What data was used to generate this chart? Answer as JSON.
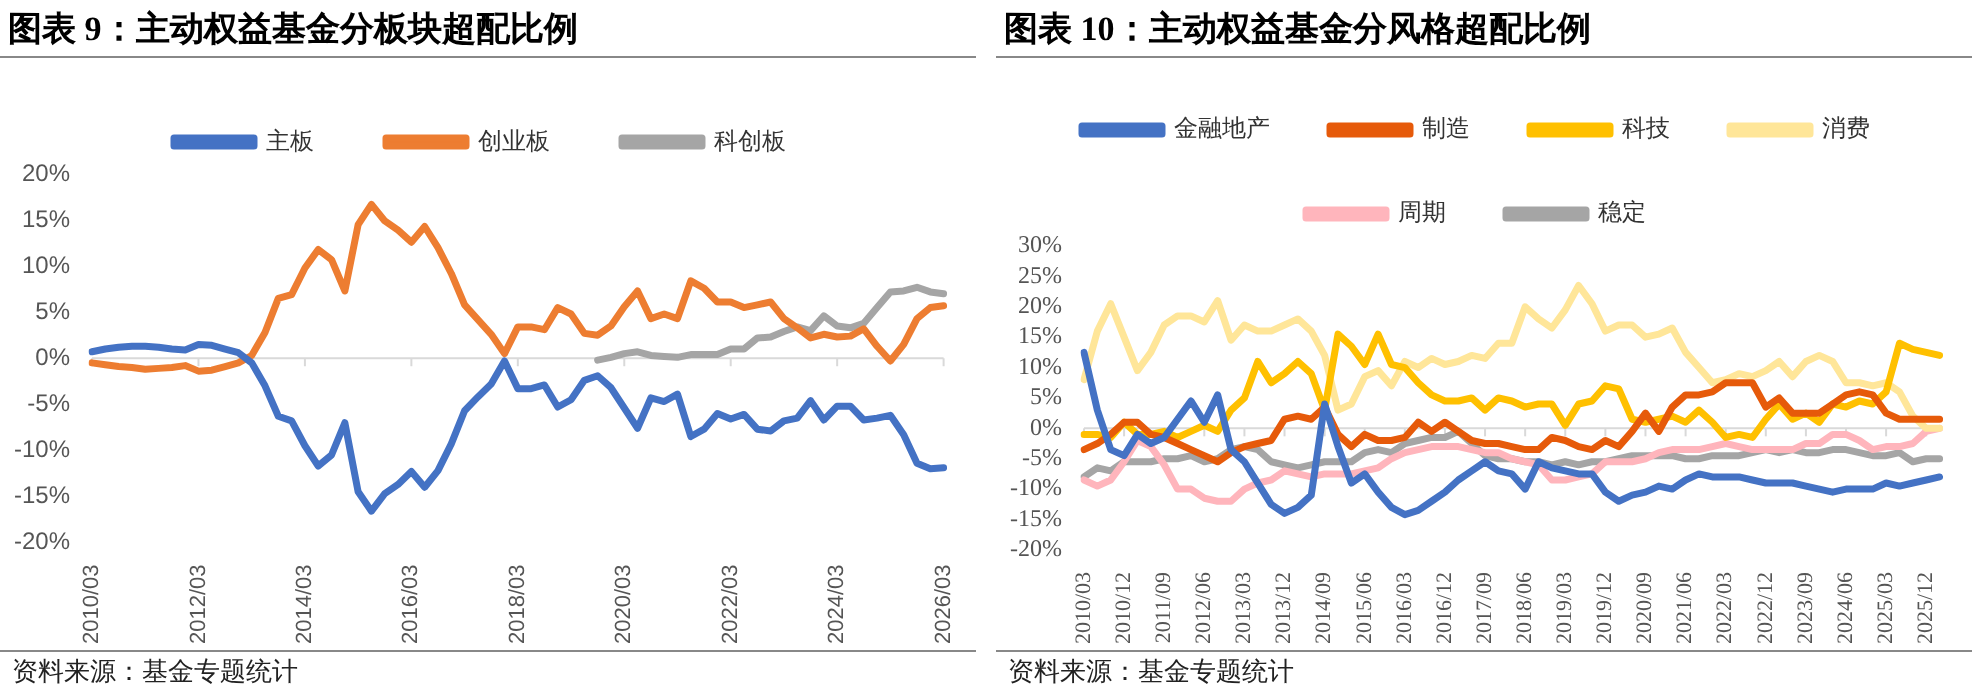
{
  "chart_data": [
    {
      "type": "line",
      "title": "图表 9：主动权益基金分板块超配比例",
      "legend": "top",
      "marker": "none",
      "categories": [
        "2010/03",
        null,
        null,
        null,
        null,
        null,
        null,
        null,
        "2012/03",
        null,
        null,
        null,
        null,
        null,
        null,
        null,
        "2014/03",
        null,
        null,
        null,
        null,
        null,
        null,
        null,
        "2016/03",
        null,
        null,
        null,
        null,
        null,
        null,
        null,
        "2018/03",
        null,
        null,
        null,
        null,
        null,
        null,
        null,
        "2020/03",
        null,
        null,
        null,
        null,
        null,
        null,
        null,
        "2022/03",
        null,
        null,
        null,
        null,
        null,
        null,
        null,
        "2024/03",
        null,
        null,
        null,
        null,
        null,
        null,
        null,
        "2026/03"
      ],
      "ylim": [
        -20,
        20
      ],
      "yticks": [
        {
          "value": -20,
          "label": "-20%"
        },
        {
          "value": -15,
          "label": "-15%"
        },
        {
          "value": -10,
          "label": "-10%"
        },
        {
          "value": -5,
          "label": "-5%"
        },
        {
          "value": 0,
          "label": "0%"
        },
        {
          "value": 5,
          "label": "5%"
        },
        {
          "value": 10,
          "label": "10%"
        },
        {
          "value": 15,
          "label": "15%"
        },
        {
          "value": 20,
          "label": "20%"
        }
      ],
      "series": [
        {
          "name": "主板",
          "color": "#4472c4",
          "values": [
            0.7,
            1.0,
            1.2,
            1.3,
            1.3,
            1.2,
            1.0,
            0.9,
            1.5,
            1.4,
            1.0,
            0.6,
            -0.5,
            -3,
            -6.3,
            -6.8,
            -9.5,
            -11.7,
            -10.5,
            -7,
            -14.5,
            -16.6,
            -14.7,
            -13.7,
            -12.3,
            -14,
            -12.2,
            -9.3,
            -5.7,
            -4.2,
            -2.8,
            -0.3,
            -3.3,
            -3.3,
            -2.9,
            -5.3,
            -4.5,
            -2.4,
            -1.9,
            -3.2,
            -5.4,
            -7.6,
            -4.3,
            -4.7,
            -3.9,
            -8.5,
            -7.7,
            -6,
            -6.6,
            -6.1,
            -7.7,
            -7.9,
            -6.8,
            -6.5,
            -4.6,
            -6.7,
            -5.2,
            -5.2,
            -6.7,
            -6.5,
            -6.2,
            -8.3,
            -11.4,
            -12,
            -11.9
          ]
        },
        {
          "name": "创业板",
          "color": "#ed7d31",
          "values": [
            -0.5,
            -0.7,
            -0.9,
            -1.0,
            -1.2,
            -1.1,
            -1.0,
            -0.8,
            -1.4,
            -1.3,
            -0.9,
            -0.5,
            0.3,
            2.8,
            6.5,
            6.9,
            9.8,
            11.8,
            10.7,
            7.3,
            14.5,
            16.7,
            14.9,
            13.9,
            12.6,
            14.3,
            12,
            9.2,
            5.8,
            4.2,
            2.6,
            0.5,
            3.4,
            3.4,
            3.1,
            5.5,
            4.8,
            2.7,
            2.5,
            3.5,
            5.6,
            7.3,
            4.3,
            4.8,
            4.3,
            8.4,
            7.6,
            6.1,
            6.1,
            5.5,
            5.8,
            6.1,
            4.3,
            3.3,
            2.2,
            2.6,
            2.3,
            2.4,
            3.2,
            1.3,
            -0.3,
            1.5,
            4.3,
            5.5,
            5.7
          ]
        },
        {
          "name": "科创板",
          "color": "#a5a5a5",
          "values": [
            null,
            null,
            null,
            null,
            null,
            null,
            null,
            null,
            null,
            null,
            null,
            null,
            null,
            null,
            null,
            null,
            null,
            null,
            null,
            null,
            null,
            null,
            null,
            null,
            null,
            null,
            null,
            null,
            null,
            null,
            null,
            null,
            null,
            null,
            null,
            null,
            null,
            null,
            -0.2,
            0.1,
            0.5,
            0.7,
            0.3,
            0.2,
            0.1,
            0.4,
            0.4,
            0.4,
            1.0,
            1.0,
            2.2,
            2.3,
            2.9,
            3.4,
            3.0,
            4.6,
            3.5,
            3.3,
            3.8,
            5.5,
            7.2,
            7.3,
            7.7,
            7.2,
            7.0
          ]
        }
      ],
      "annotations": [
        "资料来源：基金专题统计"
      ]
    },
    {
      "type": "line",
      "title": "图表 10：主动权益基金分风格超配比例",
      "legend": "top",
      "marker": "none",
      "categories": [
        "2010/03",
        null,
        null,
        "2010/12",
        null,
        null,
        "2011/09",
        null,
        null,
        "2012/06",
        null,
        null,
        "2013/03",
        null,
        null,
        "2013/12",
        null,
        null,
        "2014/09",
        null,
        null,
        "2015/06",
        null,
        null,
        "2016/03",
        null,
        null,
        "2016/12",
        null,
        null,
        "2017/09",
        null,
        null,
        "2018/06",
        null,
        null,
        "2019/03",
        null,
        null,
        "2019/12",
        null,
        null,
        "2020/09",
        null,
        null,
        "2021/06",
        null,
        null,
        "2022/03",
        null,
        null,
        "2022/12",
        null,
        null,
        "2023/09",
        null,
        null,
        "2024/06",
        null,
        null,
        "2025/03",
        null,
        null,
        "2025/12",
        null
      ],
      "ylim": [
        -20,
        30
      ],
      "yticks": [
        {
          "value": -20,
          "label": "-20%"
        },
        {
          "value": -15,
          "label": "-15%"
        },
        {
          "value": -10,
          "label": "-10%"
        },
        {
          "value": -5,
          "label": "-5%"
        },
        {
          "value": 0,
          "label": "0%"
        },
        {
          "value": 5,
          "label": "5%"
        },
        {
          "value": 10,
          "label": "10%"
        },
        {
          "value": 15,
          "label": "15%"
        },
        {
          "value": 20,
          "label": "20%"
        },
        {
          "value": 25,
          "label": "25%"
        },
        {
          "value": 30,
          "label": "30%"
        }
      ],
      "series": [
        {
          "name": "金融地产",
          "color": "#4472c4",
          "values": [
            12.5,
            3,
            -3.5,
            -4.5,
            -1,
            -2.5,
            -1.5,
            1.5,
            4.5,
            1,
            5.5,
            -3.5,
            -5.5,
            -9,
            -12.5,
            -14,
            -13,
            -11,
            4,
            -3,
            -9,
            -7.5,
            -10.5,
            -13,
            -14.2,
            -13.5,
            -12,
            -10.5,
            -8.5,
            -7,
            -5.5,
            -7,
            -7.5,
            -10,
            -5.5,
            -6.5,
            -7,
            -7.5,
            -7.5,
            -10.5,
            -12,
            -11,
            -10.5,
            -9.5,
            -10,
            -8.5,
            -7.5,
            -8,
            -8,
            -8,
            -8.5,
            -9,
            -9,
            -9,
            -9.5,
            -10,
            -10.5,
            -10,
            -10,
            -10,
            -9,
            -9.5,
            -9,
            -8.5,
            -8
          ]
        },
        {
          "name": "制造",
          "color": "#e65a0a",
          "values": [
            -3.5,
            -2.5,
            -1,
            1,
            1,
            -1,
            -1.5,
            -2.5,
            -3.5,
            -4.5,
            -5.5,
            -4,
            -3,
            -2.5,
            -2,
            1.5,
            2,
            1.5,
            3.5,
            -1,
            -3,
            -1,
            -2,
            -2,
            -1.5,
            1,
            -0.5,
            1,
            -0.5,
            -2,
            -2.5,
            -2.5,
            -3,
            -3.5,
            -3.5,
            -1.5,
            -2,
            -3,
            -3.5,
            -2,
            -3,
            -0.5,
            2.5,
            -0.5,
            3.5,
            5.5,
            5.5,
            6,
            7.5,
            7.5,
            7.5,
            3.5,
            5,
            2.5,
            2.5,
            2.5,
            4,
            5.5,
            6,
            5.5,
            2.5,
            1.5,
            1.5,
            1.5,
            1.5
          ]
        },
        {
          "name": "科技",
          "color": "#ffc000",
          "values": [
            -1,
            -1,
            -1.5,
            1,
            -1,
            -1,
            -0.5,
            -1.5,
            -0.5,
            0.5,
            -0.5,
            3,
            5,
            11,
            7.5,
            9,
            11,
            9,
            3,
            15.5,
            13.5,
            10.5,
            15.5,
            10.5,
            10,
            7.5,
            5.5,
            4.5,
            4.5,
            5,
            3,
            5,
            4.5,
            3.5,
            4,
            4,
            0.5,
            4,
            4.5,
            7,
            6.5,
            1.5,
            1,
            1.5,
            2,
            1,
            3,
            1,
            -1.5,
            -1,
            -1.5,
            1.5,
            4,
            1.5,
            2.5,
            1,
            4,
            3.5,
            4.5,
            4,
            6,
            14,
            13,
            12.5,
            12
          ]
        },
        {
          "name": "消费",
          "color": "#ffe699",
          "values": [
            8,
            16,
            20.5,
            15,
            9.5,
            12.5,
            17,
            18.5,
            18.5,
            17.5,
            21,
            14.5,
            17,
            16,
            16,
            17,
            18,
            16,
            12,
            3,
            4,
            8.5,
            9.5,
            7,
            11,
            10,
            11.5,
            10.5,
            11,
            12,
            11.5,
            14,
            14,
            20,
            18,
            16.5,
            19.5,
            23.5,
            20.5,
            16,
            17,
            17,
            15,
            15.5,
            16.5,
            12.5,
            10,
            7.5,
            8,
            9,
            8.5,
            9.5,
            11,
            8.5,
            11,
            12,
            11,
            7.5,
            7.5,
            7,
            7.5,
            6,
            2,
            0,
            0
          ]
        },
        {
          "name": "周期",
          "color": "#ffb5bc",
          "values": [
            -8.5,
            -9.5,
            -8.5,
            -5.5,
            -2,
            -3,
            -6,
            -10,
            -10,
            -11.5,
            -12,
            -12,
            -10,
            -9,
            -8.5,
            -7,
            -7.5,
            -8,
            -7.5,
            -7.5,
            -7.5,
            -7,
            -6.5,
            -5,
            -4,
            -3.5,
            -3,
            -3,
            -3,
            -3.5,
            -4,
            -4,
            -5,
            -5.5,
            -6,
            -8.5,
            -8.5,
            -8,
            -7.5,
            -5.5,
            -5.5,
            -5.5,
            -5,
            -4,
            -3.5,
            -3.5,
            -3.5,
            -3,
            -2.5,
            -3,
            -3.5,
            -3.5,
            -3.5,
            -3.5,
            -2.5,
            -2.5,
            -1,
            -1,
            -2,
            -3.5,
            -3,
            -3,
            -2.5,
            -0.5,
            0
          ]
        },
        {
          "name": "稳定",
          "color": "#a5a5a5",
          "values": [
            -8,
            -6.5,
            -7,
            -5.5,
            -5.5,
            -5.5,
            -5,
            -5,
            -4.5,
            -5.5,
            -5,
            -3.5,
            -3,
            -3.5,
            -5.5,
            -6,
            -6.5,
            -6,
            -5.5,
            -5.5,
            -5.5,
            -4,
            -3.5,
            -4,
            -2.5,
            -2,
            -1.5,
            -1.5,
            -0.5,
            -2.5,
            -4.5,
            -5,
            -5,
            -5.5,
            -5.5,
            -6,
            -5.5,
            -6,
            -5.5,
            -5.5,
            -5,
            -4.5,
            -4.5,
            -4.5,
            -4.5,
            -5,
            -5,
            -4.5,
            -4.5,
            -4.5,
            -4,
            -3.5,
            -4,
            -3.5,
            -4,
            -4,
            -3.5,
            -3.5,
            -4,
            -4.5,
            -4.5,
            -4,
            -5.5,
            -5,
            -5
          ]
        }
      ],
      "annotations": [
        "资料来源：基金专题统计"
      ]
    }
  ]
}
